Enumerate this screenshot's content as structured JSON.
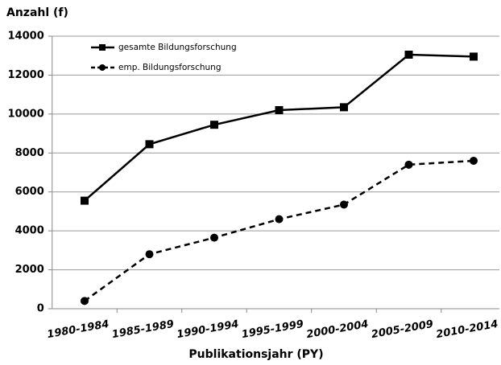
{
  "chart_data": {
    "type": "line",
    "ylabel": "Anzahl (f)",
    "xlabel": "Publikationsjahr (PY)",
    "categories": [
      "1980-1984",
      "1985-1989",
      "1990-1994",
      "1995-1999",
      "2000-2004",
      "2005-2009",
      "2010-2014"
    ],
    "series": [
      {
        "name": "gesamte Bildungsforschung",
        "color": "#000000",
        "linestyle": "solid",
        "marker": "square",
        "values": [
          5550,
          8450,
          9450,
          10200,
          10350,
          13050,
          12950
        ]
      },
      {
        "name": "emp. Bildungsforschung",
        "color": "#000000",
        "linestyle": "dashed",
        "marker": "circle",
        "values": [
          400,
          2800,
          3650,
          4600,
          5350,
          7400,
          7600
        ]
      }
    ],
    "ylim": [
      0,
      14000
    ],
    "yticks": [
      0,
      2000,
      4000,
      6000,
      8000,
      10000,
      12000,
      14000
    ],
    "grid": true,
    "legend": "top"
  }
}
